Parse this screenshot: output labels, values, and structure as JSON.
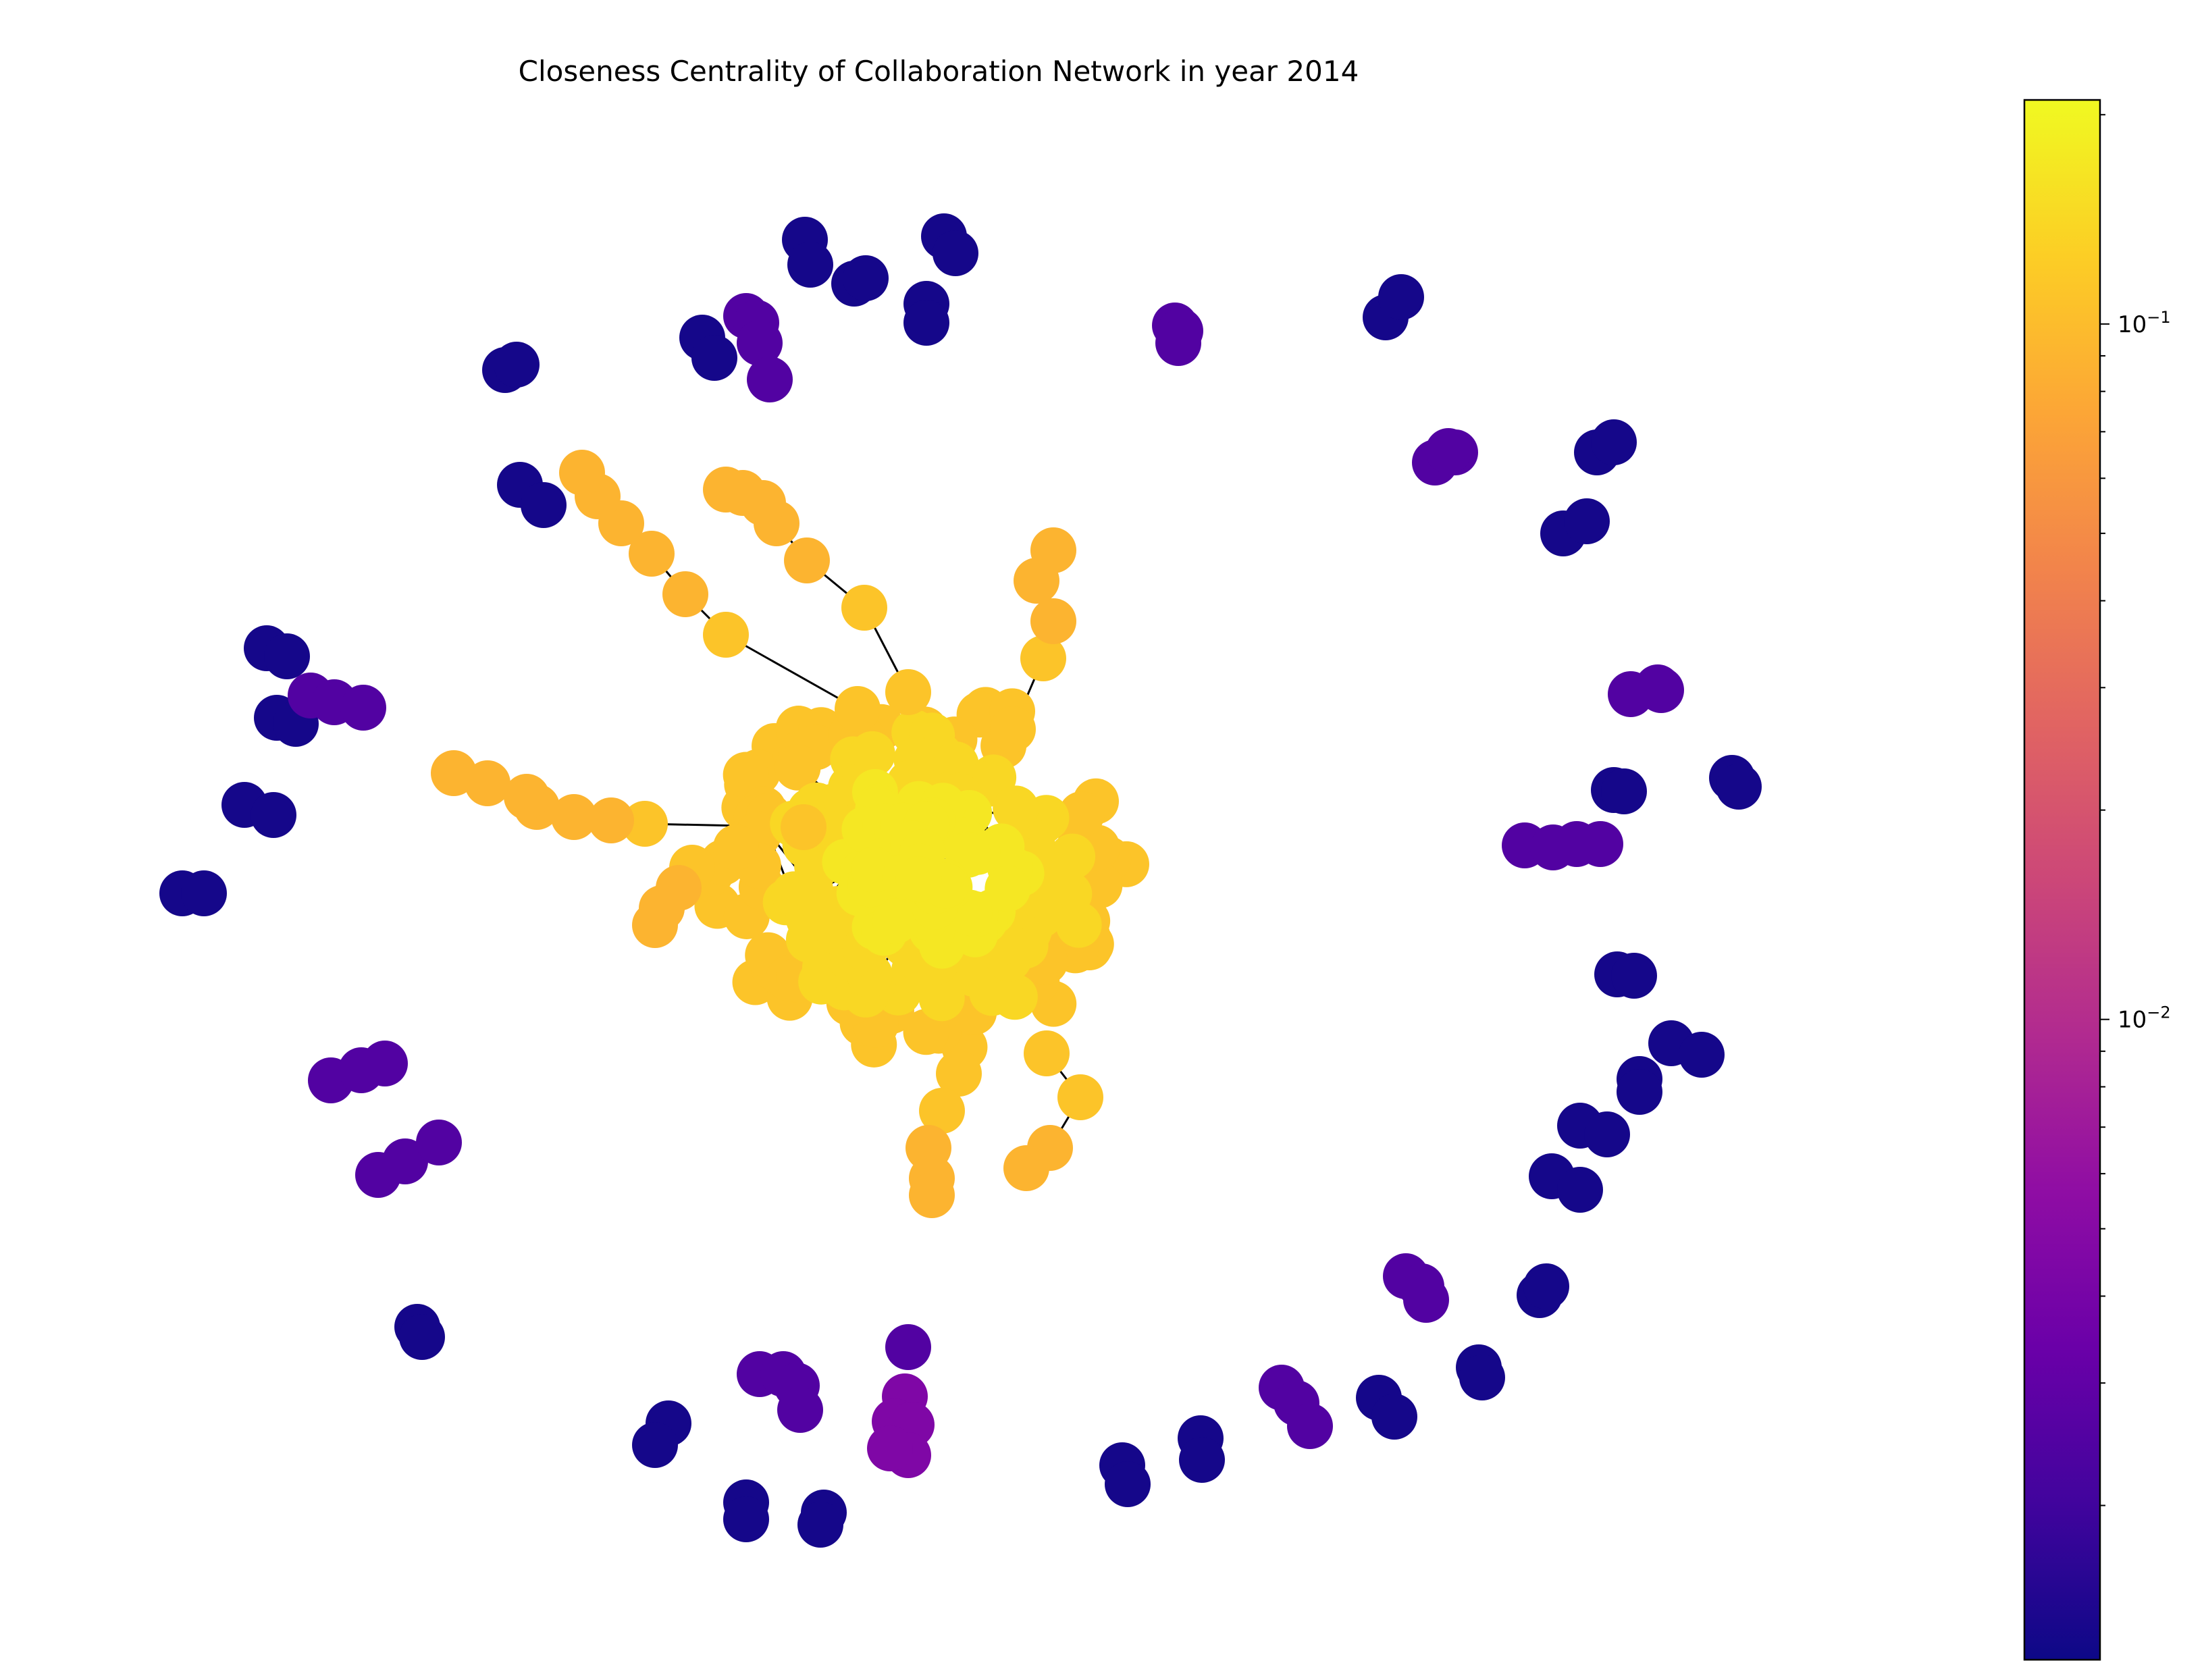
{
  "chart_data": {
    "type": "scatter",
    "subtype": "network-graph",
    "title": "Closeness Centrality of Collaboration Network in year 2014",
    "colormap": "plasma",
    "colorbar": {
      "scale": "log",
      "range": [
        0.0012,
        0.21
      ],
      "tick_labels": [
        {
          "value": 0.1,
          "base": "10",
          "exponent": "−1"
        },
        {
          "value": 0.01,
          "base": "10",
          "exponent": "−2"
        }
      ]
    },
    "node_color_min": "#0d0887",
    "node_color_mid": "#cc4778",
    "node_color_max": "#f0f921",
    "edge_color": "#000000",
    "axes_visible": false,
    "grid": false,
    "legend": "none",
    "central_component": {
      "closeness_core": 0.17,
      "closeness_periphery": 0.11,
      "closeness_tendrils": 0.09
    },
    "peripheral_components": {
      "closeness_pairs": 0.0013,
      "closeness_triads": 0.0025,
      "closeness_groups": 0.0045
    }
  }
}
